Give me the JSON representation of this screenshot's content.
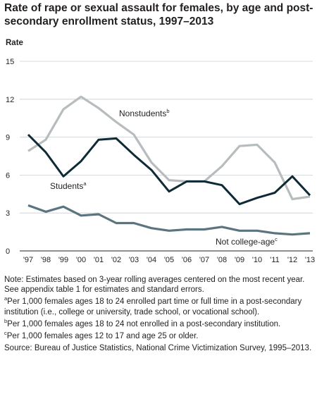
{
  "chart_data": {
    "type": "line",
    "title": "Rate of rape or sexual assault for females, by age and post-secondary enrollment status, 1997–2013",
    "ylabel": "Rate",
    "xlabel": "",
    "ylim": [
      0,
      15
    ],
    "yticks": [
      "0",
      "3",
      "6",
      "9",
      "12",
      "15"
    ],
    "categories": [
      "'97",
      "'98",
      "'99",
      "'00",
      "'01",
      "'02",
      "'03",
      "'04",
      "'05",
      "'06",
      "'07",
      "'08",
      "'09",
      "'10",
      "'11",
      "'12",
      "'13"
    ],
    "grid": true,
    "series": [
      {
        "name": "Nonstudents",
        "marker": "b",
        "color": "#b7bcbe",
        "values": [
          7.9,
          8.8,
          11.2,
          12.2,
          11.3,
          10.2,
          9.2,
          7.0,
          5.6,
          5.5,
          5.5,
          6.7,
          8.3,
          8.4,
          7.0,
          4.1,
          4.3
        ]
      },
      {
        "name": "Students",
        "marker": "a",
        "color": "#0e2a36",
        "values": [
          9.2,
          7.8,
          5.9,
          7.1,
          8.8,
          8.9,
          7.6,
          6.4,
          4.7,
          5.5,
          5.5,
          5.2,
          3.7,
          4.2,
          4.6,
          5.9,
          4.4
        ]
      },
      {
        "name": "Not college-age",
        "marker": "c",
        "color": "#5b7580",
        "values": [
          3.6,
          3.1,
          3.5,
          2.8,
          2.9,
          2.2,
          2.2,
          1.8,
          1.6,
          1.7,
          1.7,
          1.9,
          1.6,
          1.6,
          1.4,
          1.3,
          1.4
        ]
      }
    ]
  },
  "notes": {
    "note": "Note: Estimates based on 3-year rolling averages centered on the most recent year. See appendix table 1 for estimates and standard errors.",
    "a_marker": "a",
    "a": "Per 1,000 females ages 18 to 24 enrolled part time or full time in a post-secondary institution (i.e., college or university, trade school, or vocational school).",
    "b_marker": "b",
    "b": "Per 1,000 females ages 18 to 24 not enrolled in a post-secondary institution.",
    "c_marker": "c",
    "c": "Per 1,000 females ages 12 to 17 and age 25 or older.",
    "source": "Source: Bureau of Justice Statistics, National Crime Victimization Survey, 1995–2013."
  }
}
